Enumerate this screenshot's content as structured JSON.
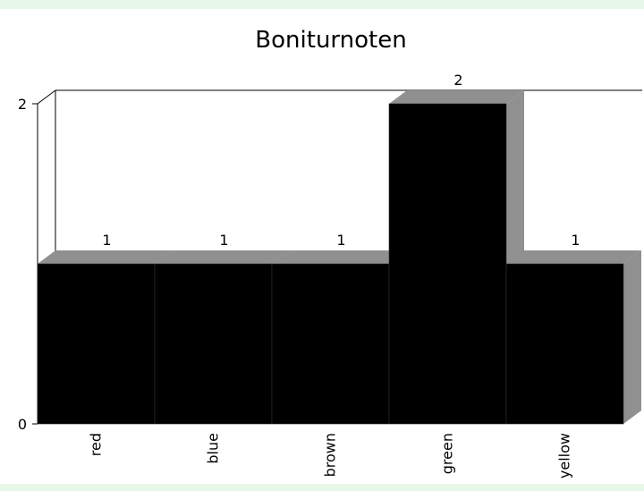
{
  "chart_data": {
    "type": "bar",
    "title": "Boniturnoten",
    "categories": [
      "red",
      "blue",
      "brown",
      "green",
      "yellow"
    ],
    "values": [
      1,
      1,
      1,
      2,
      1
    ],
    "data_labels": [
      "1",
      "1",
      "1",
      "2",
      "1"
    ],
    "y_ticks": [
      "0",
      "2"
    ],
    "ylim": [
      0,
      2
    ],
    "grid": false,
    "legend": "none",
    "bar_color": "#000000",
    "shadow_color": "#909090",
    "three_d": true
  }
}
